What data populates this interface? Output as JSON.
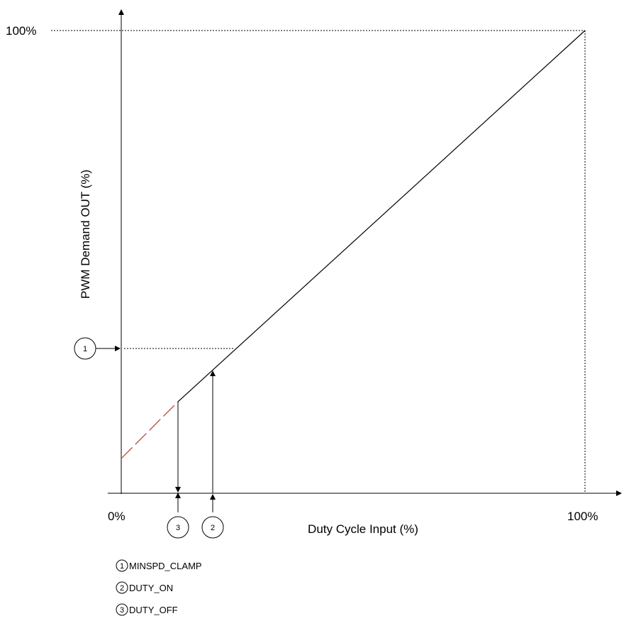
{
  "diagram": {
    "y_axis_label": "PWM Demand OUT (%)",
    "x_axis_label": "Duty Cycle Input (%)",
    "y_max_label": "100%",
    "x_min_label": "0%",
    "x_max_label": "100%",
    "markers": {
      "minspd_marker": "1",
      "duty_off_marker": "3",
      "duty_on_marker": "2"
    },
    "legend": [
      {
        "number": "1",
        "text": "MINSPD_CLAMP"
      },
      {
        "number": "2",
        "text": "DUTY_ON"
      },
      {
        "number": "3",
        "text": "DUTY_OFF"
      }
    ],
    "colors": {
      "line": "#000000",
      "dashed_segment": "#c0392b",
      "guides": "#000000"
    }
  }
}
